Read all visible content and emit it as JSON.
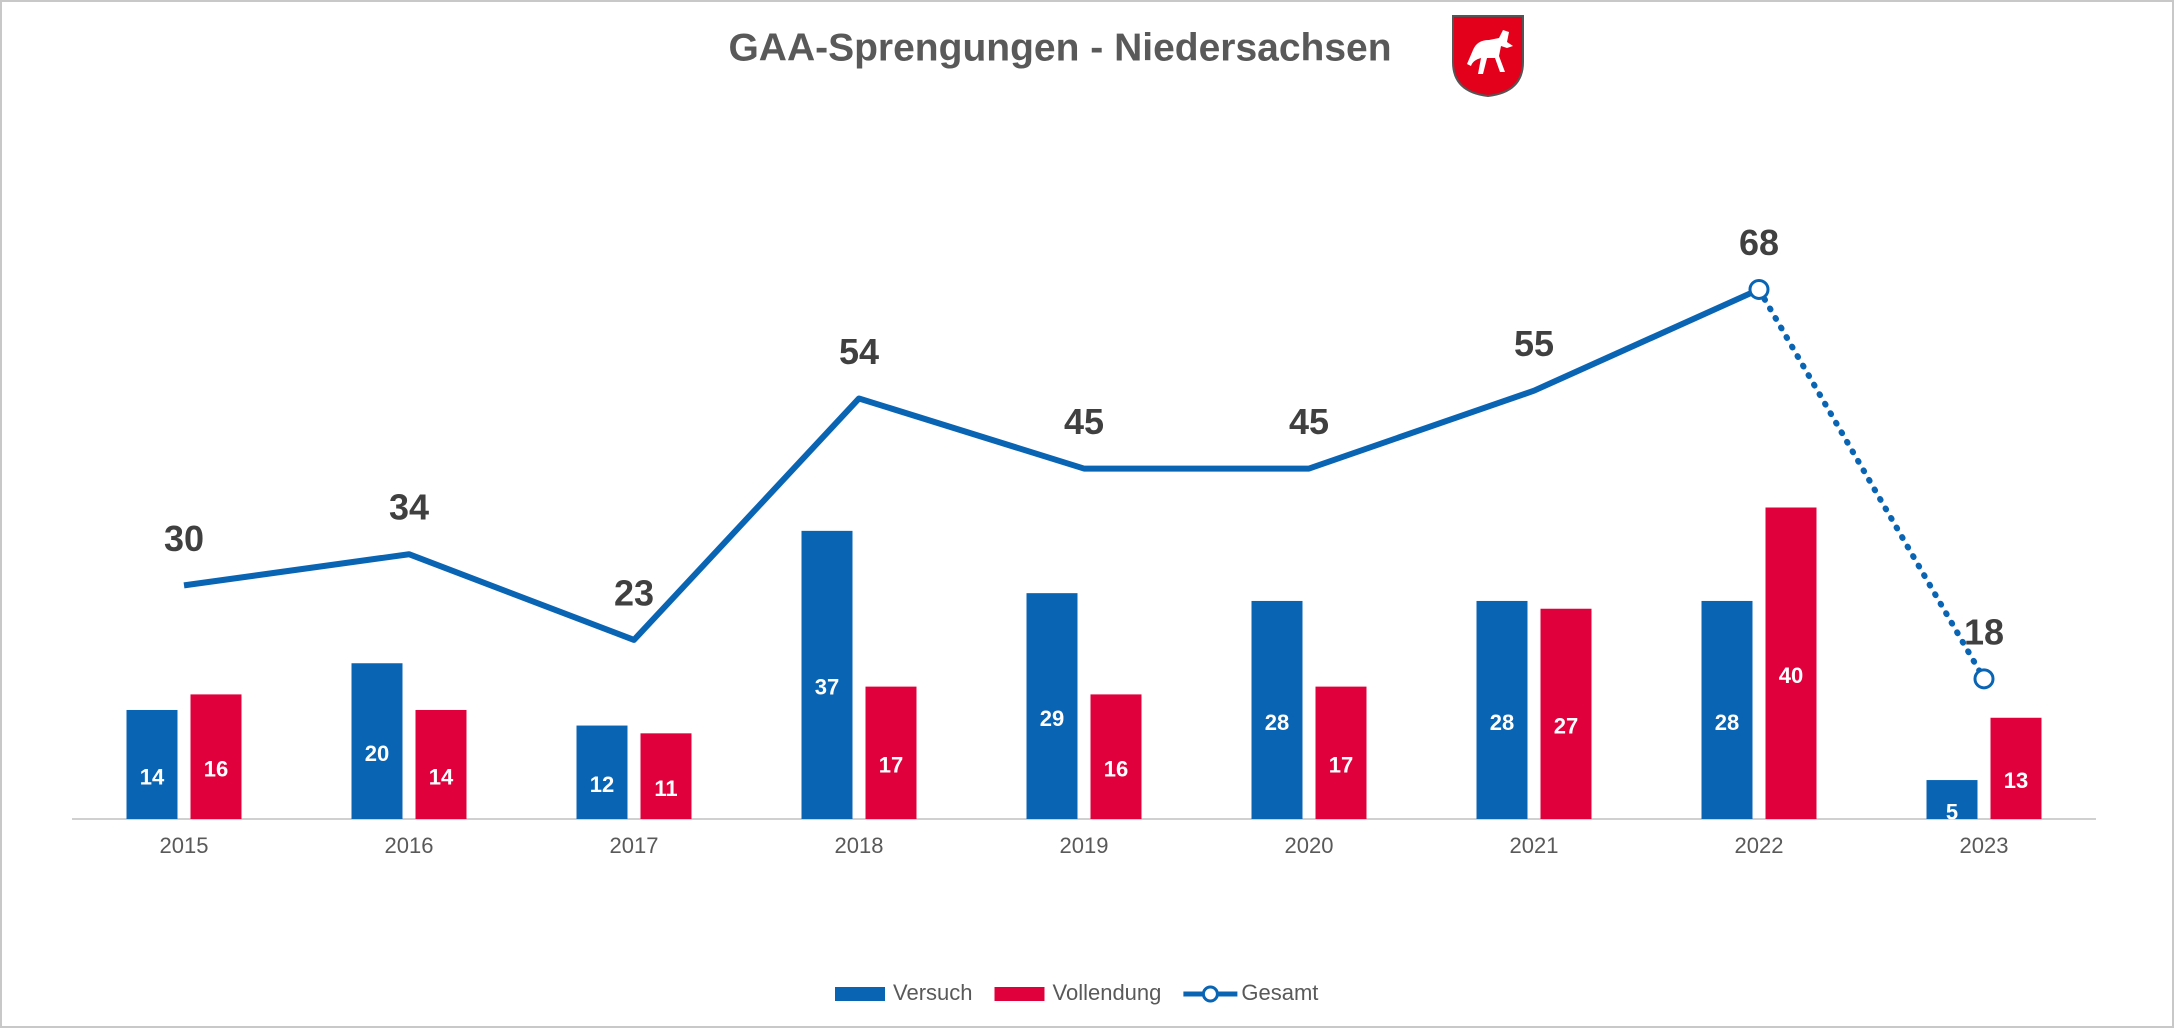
{
  "chart_data": {
    "type": "bar-line",
    "title": "GAA-Sprengungen - Niedersachsen",
    "categories": [
      "2015",
      "2016",
      "2017",
      "2018",
      "2019",
      "2020",
      "2021",
      "2022",
      "2023"
    ],
    "series": [
      {
        "name": "Versuch",
        "type": "bar",
        "color": "#0a64b4",
        "values": [
          14,
          20,
          12,
          37,
          29,
          28,
          28,
          28,
          5
        ]
      },
      {
        "name": "Vollendung",
        "type": "bar",
        "color": "#e0003c",
        "values": [
          16,
          14,
          11,
          17,
          16,
          17,
          27,
          40,
          13
        ]
      },
      {
        "name": "Gesamt",
        "type": "line",
        "color": "#0a64b4",
        "values": [
          30,
          34,
          23,
          54,
          45,
          45,
          55,
          68,
          18
        ]
      }
    ],
    "ylim": [
      0,
      80
    ],
    "legend": "bottom"
  }
}
